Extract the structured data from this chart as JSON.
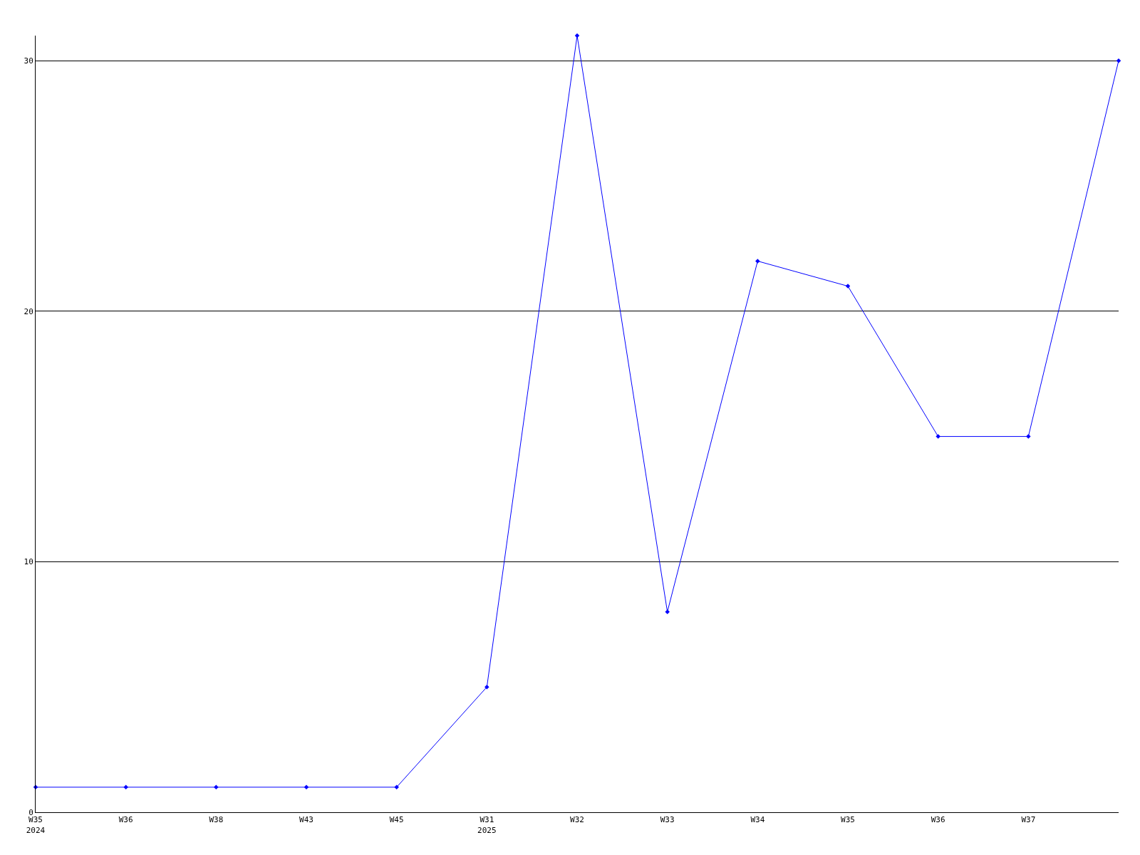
{
  "chart_data": {
    "type": "line",
    "categories": [
      "W35\n2024",
      "W36",
      "W38",
      "W43",
      "W45",
      "W31\n2025",
      "W32",
      "W33",
      "W34",
      "W35",
      "W36",
      "W37",
      null
    ],
    "series": [
      {
        "color": "#0000ff",
        "values": [
          1,
          1,
          1,
          1,
          1,
          5,
          31,
          8,
          22,
          21,
          15,
          15,
          30
        ]
      }
    ],
    "ylim": [
      0,
      31
    ],
    "yticks": [
      0,
      10,
      20,
      30
    ],
    "grid": "y",
    "marker": "diamond",
    "line_style": "solid",
    "legend": false
  }
}
